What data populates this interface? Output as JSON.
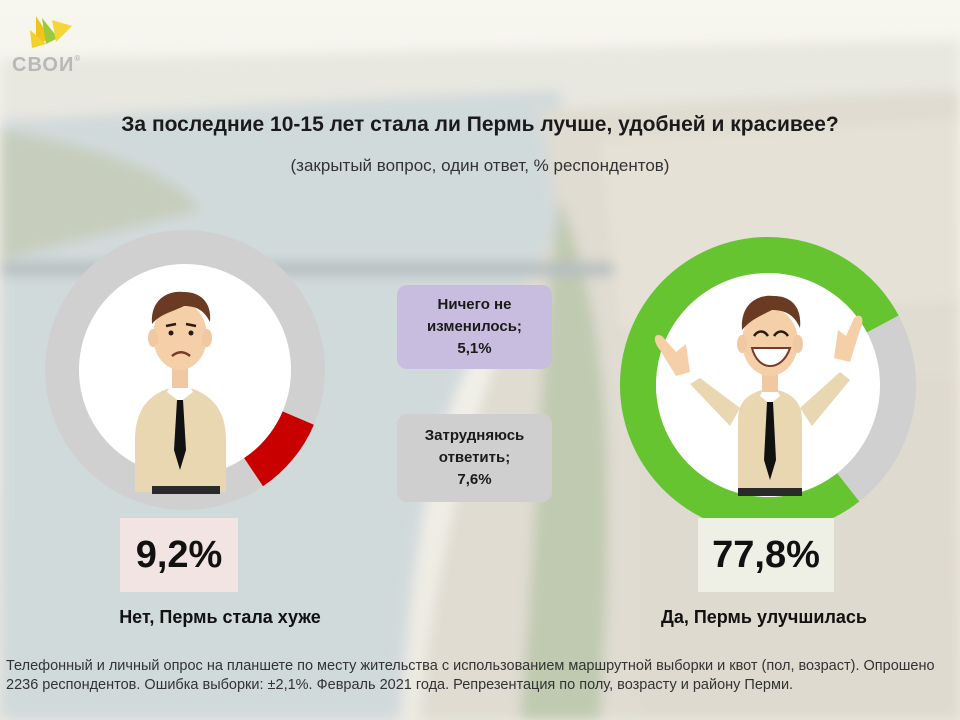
{
  "brand": {
    "name": "СВОИ",
    "registered": "®"
  },
  "title": "За последние 10-15 лет стала ли Пермь лучше, удобней и красивее?",
  "subtitle": "(закрытый вопрос, один ответ, % респондентов)",
  "chart_data": [
    {
      "type": "pie",
      "series": [
        {
          "name": "Нет, Пермь стала хуже",
          "value": 9.2,
          "value_label": "9,2%",
          "color": "#c80000"
        }
      ],
      "track_color": "#d0d0d0"
    },
    {
      "type": "pie",
      "series": [
        {
          "name": "Да, Пермь улучшилась",
          "value": 77.8,
          "value_label": "77,8%",
          "color": "#66c430"
        }
      ],
      "track_color": "#d0d0d0"
    },
    {
      "type": "table",
      "rows": [
        {
          "lines": [
            "Ничего не",
            "изменилось;",
            "5,1%"
          ],
          "value": 5.1,
          "color": "#c8bdde"
        },
        {
          "lines": [
            "Затрудняюсь",
            "ответить;",
            "7,6%"
          ],
          "value": 7.6,
          "color": "#cfcfcf"
        }
      ]
    }
  ],
  "footnote": "Телефонный и личный опрос на планшете по месту жительства  с использованием маршрутной выборки и квот (пол, возраст). Опрошено 2236 респондентов. Ошибка выборки: ±2,1%. Февраль 2021 года. Репрезентация по полу, возрасту и району Перми."
}
